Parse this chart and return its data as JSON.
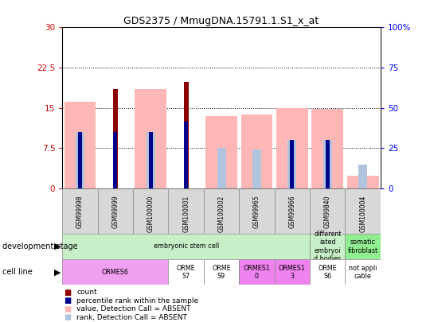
{
  "title": "GDS2375 / MmugDNA.15791.1.S1_x_at",
  "samples": [
    "GSM99998",
    "GSM99999",
    "GSM100000",
    "GSM100001",
    "GSM100002",
    "GSM99965",
    "GSM99966",
    "GSM99840",
    "GSM100004"
  ],
  "count_values": [
    null,
    18.5,
    null,
    19.8,
    null,
    null,
    null,
    null,
    null
  ],
  "percentile_rank_left": [
    10.5,
    10.5,
    10.5,
    12.5,
    null,
    null,
    9.0,
    9.0,
    null
  ],
  "value_absent": [
    16.2,
    null,
    18.5,
    null,
    13.5,
    13.8,
    15.0,
    14.8,
    2.3
  ],
  "rank_absent_left": [
    10.5,
    null,
    10.5,
    null,
    7.5,
    7.3,
    9.0,
    9.0,
    4.5
  ],
  "ylim_left": [
    0,
    30
  ],
  "ylim_right": [
    0,
    100
  ],
  "yticks_left": [
    0,
    7.5,
    15,
    22.5,
    30
  ],
  "ytick_labels_left": [
    "0",
    "7.5",
    "15",
    "22.5",
    "30"
  ],
  "yticks_right": [
    0,
    25,
    50,
    75,
    100
  ],
  "ytick_labels_right": [
    "0",
    "25",
    "50",
    "75",
    "100%"
  ],
  "color_count": "#8b0000",
  "color_percentile": "#00008b",
  "color_value_absent": "#ffb6b6",
  "color_rank_absent": "#b0c4de",
  "background_color": "#ffffff",
  "legend_items": [
    "count",
    "percentile rank within the sample",
    "value, Detection Call = ABSENT",
    "rank, Detection Call = ABSENT"
  ],
  "legend_colors": [
    "#8b0000",
    "#00008b",
    "#ffb6b6",
    "#b0c4de"
  ],
  "dev_groups": [
    {
      "start": 0,
      "end": 7,
      "label": "embryonic stem cell",
      "color": "#c8f0c8"
    },
    {
      "start": 7,
      "end": 8,
      "label": "different\niated\nembryoi\nd bodies",
      "color": "#c8f0c8"
    },
    {
      "start": 8,
      "end": 9,
      "label": "somatic\nfibroblast",
      "color": "#90ee90"
    }
  ],
  "cell_groups": [
    {
      "start": 0,
      "end": 3,
      "label": "ORMES6",
      "color": "#f0a0f0"
    },
    {
      "start": 3,
      "end": 4,
      "label": "ORME\nS7",
      "color": "#ffffff"
    },
    {
      "start": 4,
      "end": 5,
      "label": "ORME\nS9",
      "color": "#ffffff"
    },
    {
      "start": 5,
      "end": 6,
      "label": "ORMES1\n0",
      "color": "#ee82ee"
    },
    {
      "start": 6,
      "end": 7,
      "label": "ORMES1\n3",
      "color": "#ee82ee"
    },
    {
      "start": 7,
      "end": 8,
      "label": "ORME\nS6",
      "color": "#ffffff"
    },
    {
      "start": 8,
      "end": 9,
      "label": "not appli\ncable",
      "color": "#ffffff"
    }
  ]
}
